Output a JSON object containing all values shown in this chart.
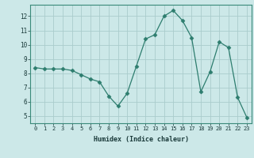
{
  "x": [
    0,
    1,
    2,
    3,
    4,
    5,
    6,
    7,
    8,
    9,
    10,
    11,
    12,
    13,
    14,
    15,
    16,
    17,
    18,
    19,
    20,
    21,
    22,
    23
  ],
  "y": [
    8.4,
    8.3,
    8.3,
    8.3,
    8.2,
    7.9,
    7.6,
    7.4,
    6.4,
    5.7,
    6.6,
    8.5,
    10.4,
    10.7,
    12.0,
    12.4,
    11.7,
    10.5,
    6.7,
    8.1,
    10.2,
    9.8,
    6.3,
    4.9
  ],
  "xlabel": "Humidex (Indice chaleur)",
  "line_color": "#2d7d6e",
  "marker": "D",
  "marker_size": 2.5,
  "bg_color": "#cce8e8",
  "grid_color": "#aacccc",
  "yticks": [
    5,
    6,
    7,
    8,
    9,
    10,
    11,
    12
  ],
  "xticks": [
    0,
    1,
    2,
    3,
    4,
    5,
    6,
    7,
    8,
    9,
    10,
    11,
    12,
    13,
    14,
    15,
    16,
    17,
    18,
    19,
    20,
    21,
    22,
    23
  ],
  "ylim": [
    4.5,
    12.8
  ],
  "xlim": [
    -0.5,
    23.5
  ]
}
